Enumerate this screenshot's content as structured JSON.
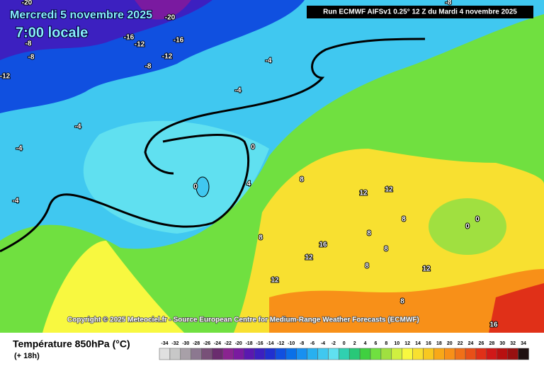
{
  "header": {
    "date": "Mercredi 5 novembre 2025",
    "time": "7:00 locale",
    "run": "Run ECMWF AIFSv1 0.25° 12 Z du Mardi 4 novembre 2025"
  },
  "copyright": "Copyright © 2025 Meteociel.fr - Source European Centre for Medium-Range Weather Forecasts (ECMWF)",
  "footer": {
    "title": "Température 850hPa (°C)",
    "lead": "(+ 18h)"
  },
  "contour_labels": [
    -20,
    -20,
    -16,
    -12,
    -16,
    -12,
    -8,
    -8,
    -8,
    -12,
    -4,
    -4,
    -4,
    -4,
    -4,
    0,
    0,
    4,
    8,
    8,
    12,
    12,
    8,
    8,
    8,
    12,
    8,
    12,
    12,
    16,
    0,
    0,
    -8,
    8,
    16
  ],
  "scale": {
    "values": [
      -34,
      -32,
      -30,
      -28,
      -26,
      -24,
      -22,
      -20,
      -18,
      -16,
      -14,
      -12,
      -10,
      -8,
      -6,
      -4,
      -2,
      0,
      2,
      4,
      6,
      8,
      10,
      12,
      14,
      16,
      18,
      20,
      22,
      24,
      26,
      28,
      30,
      32,
      34
    ],
    "colors": [
      "#e0e0e0",
      "#c8c8c8",
      "#a8a0a8",
      "#8c7890",
      "#785078",
      "#6a2c6e",
      "#8a2490",
      "#7a1aa0",
      "#5a18b0",
      "#3c20c0",
      "#2030d0",
      "#1050e0",
      "#0a70e8",
      "#1890f0",
      "#28b0f0",
      "#40c8f0",
      "#60e0f0",
      "#30d0b0",
      "#28c878",
      "#40d040",
      "#70e040",
      "#a0e040",
      "#d0f040",
      "#f8f840",
      "#f8e030",
      "#f8c820",
      "#f8a818",
      "#f89018",
      "#f07018",
      "#e85018",
      "#e03018",
      "#d01818",
      "#b81010",
      "#981010",
      "#201010"
    ]
  }
}
